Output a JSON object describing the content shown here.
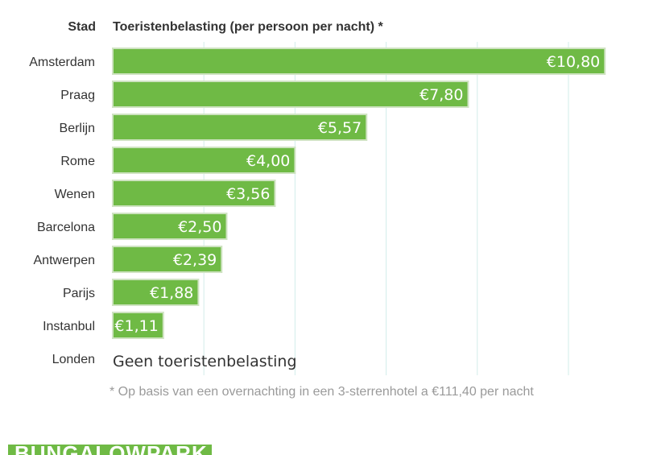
{
  "chart_data": {
    "type": "bar",
    "orientation": "horizontal",
    "header_category": "Stad",
    "title": "Toeristenbelasting (per persoon per nacht) *",
    "categories": [
      "Amsterdam",
      "Praag",
      "Berlijn",
      "Rome",
      "Wenen",
      "Barcelona",
      "Antwerpen",
      "Parijs",
      "Instanbul",
      "Londen"
    ],
    "values": [
      10.8,
      7.8,
      5.57,
      4.0,
      3.56,
      2.5,
      2.39,
      1.88,
      1.11,
      null
    ],
    "value_labels": [
      "€10,80",
      "€7,80",
      "€5,57",
      "€4,00",
      "€3,56",
      "€2,50",
      "€2,39",
      "€1,88",
      "€1,11",
      ""
    ],
    "no_value_text": "Geen toeristenbelasting",
    "footnote": "* Op basis van een overnachting in een 3-sterrenhotel a €111,40 per nacht",
    "xlim": [
      0,
      11
    ],
    "grid": true,
    "bar_color": "#6fba45",
    "grid_color": "#d2ecea"
  },
  "brand": {
    "label": "BUNGALOWPARK",
    "color": "#6fba45"
  }
}
